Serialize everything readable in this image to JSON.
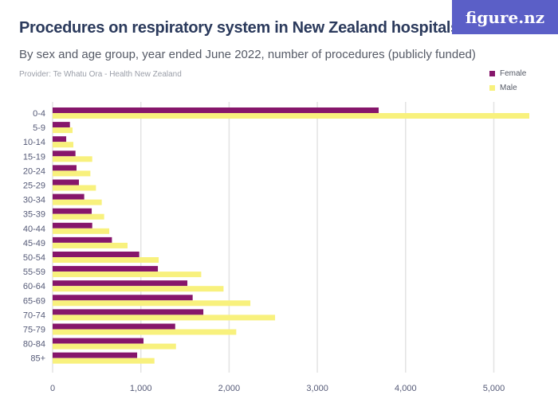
{
  "header": {
    "title": "Procedures on respiratory system in New Zealand hospitals",
    "subtitle": "By sex and age group, year ended June 2022, number of procedures (publicly funded)",
    "provider": "Provider: Te Whatu Ora - Health New Zealand",
    "logo": "figure.nz"
  },
  "colors": {
    "Female": "#86166b",
    "Male": "#f8f17d",
    "logo_bg": "#5b5fc7"
  },
  "chart_data": {
    "type": "bar",
    "orientation": "horizontal",
    "grid": true,
    "legend": "top-right",
    "categories": [
      "0-4",
      "5-9",
      "10-14",
      "15-19",
      "20-24",
      "25-29",
      "30-34",
      "35-39",
      "40-44",
      "45-49",
      "50-54",
      "55-59",
      "60-64",
      "65-69",
      "70-74",
      "75-79",
      "80-84",
      "85+"
    ],
    "series": [
      {
        "name": "Female",
        "values": [
          3695,
          196,
          154,
          259,
          271,
          298,
          358,
          443,
          449,
          672,
          982,
          1193,
          1527,
          1587,
          1708,
          1389,
          1030,
          958
        ]
      },
      {
        "name": "Male",
        "values": [
          5402,
          226,
          235,
          449,
          428,
          491,
          557,
          584,
          642,
          849,
          1202,
          1684,
          1937,
          2241,
          2521,
          2081,
          1398,
          1154
        ]
      }
    ],
    "xlim": [
      0,
      5450
    ],
    "xticks": [
      0,
      1000,
      2000,
      3000,
      4000,
      5000
    ],
    "xtick_labels": [
      "0",
      "1,000",
      "2,000",
      "3,000",
      "4,000",
      "5,000"
    ]
  }
}
